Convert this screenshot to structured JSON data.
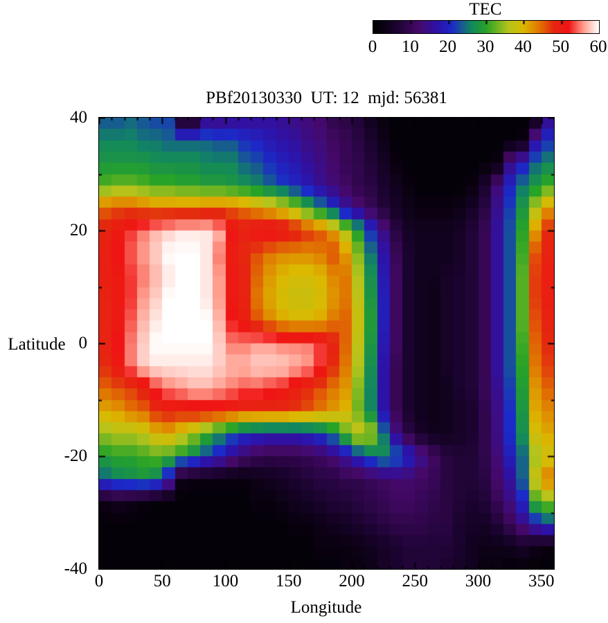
{
  "page": {
    "background": "#ffffff"
  },
  "colorbar": {
    "title": "TEC",
    "min": 0,
    "max": 60,
    "tick_values": [
      0,
      10,
      20,
      30,
      40,
      50,
      60
    ],
    "tick_labels": [
      "0",
      "10",
      "20",
      "30",
      "40",
      "50",
      "60"
    ]
  },
  "palette_stops": [
    [
      0,
      "#000000"
    ],
    [
      6,
      "#1a032e"
    ],
    [
      12,
      "#46096a"
    ],
    [
      17,
      "#2d12a8"
    ],
    [
      21,
      "#1b2ac8"
    ],
    [
      26,
      "#12875f"
    ],
    [
      30,
      "#27a327"
    ],
    [
      36,
      "#b4c41c"
    ],
    [
      40,
      "#dcb800"
    ],
    [
      44,
      "#e07800"
    ],
    [
      48,
      "#e42810"
    ],
    [
      52,
      "#f01414"
    ],
    [
      56,
      "#ff9e8e"
    ],
    [
      60,
      "#ffffff"
    ]
  ],
  "chart_data": {
    "type": "heatmap",
    "title": "PBf20130330  UT: 12  mjd: 56381",
    "xlabel": "Longitude",
    "ylabel": "Latitude",
    "xlim": [
      0,
      360
    ],
    "ylim": [
      -40,
      40
    ],
    "x_ticks": [
      0,
      50,
      100,
      150,
      200,
      250,
      300,
      350
    ],
    "y_ticks": [
      40,
      20,
      0,
      -20,
      -40
    ],
    "x_minor_step": 10,
    "y_minor_step": 10,
    "legend_title": "TEC",
    "grid": false,
    "lon_cell_deg": 10,
    "lat_sample_deg": 4,
    "lon_centers_start": 5,
    "lat_centers": [
      40,
      36,
      32,
      28,
      24,
      20,
      16,
      12,
      8,
      4,
      0,
      -4,
      -8,
      -12,
      -16,
      -20,
      -24,
      -28,
      -32,
      -36,
      -40
    ],
    "values": [
      [
        23,
        23,
        24,
        23,
        22,
        22,
        2,
        2,
        13,
        13,
        14,
        15,
        15,
        16,
        15,
        14,
        13,
        12,
        9,
        8,
        7,
        4,
        2,
        1,
        1,
        1,
        1,
        1,
        1,
        1,
        1,
        1,
        1,
        1,
        2,
        14
      ],
      [
        26,
        26,
        26,
        25,
        25,
        24,
        24,
        24,
        24,
        23,
        23,
        21,
        20,
        18,
        17,
        16,
        14,
        13,
        11,
        10,
        8,
        6,
        3,
        1,
        1,
        1,
        1,
        1,
        1,
        1,
        1,
        1,
        1,
        2,
        16,
        21
      ],
      [
        28,
        28,
        28,
        28,
        27,
        27,
        27,
        27,
        26,
        26,
        26,
        24,
        23,
        21,
        19,
        18,
        16,
        14,
        12,
        10,
        9,
        7,
        5,
        2,
        1,
        1,
        1,
        1,
        1,
        1,
        1,
        2,
        14,
        19,
        24,
        26
      ],
      [
        32,
        33,
        33,
        32,
        31,
        31,
        30,
        30,
        29,
        29,
        28,
        27,
        26,
        24,
        22,
        20,
        18,
        15,
        13,
        11,
        9,
        8,
        6,
        4,
        2,
        1,
        1,
        1,
        1,
        2,
        6,
        13,
        20,
        25,
        28,
        31
      ],
      [
        45,
        46,
        46,
        45,
        44,
        44,
        44,
        44,
        45,
        45,
        45,
        44,
        42,
        40,
        38,
        35,
        30,
        26,
        21,
        16,
        13,
        10,
        7,
        5,
        3,
        2,
        2,
        2,
        3,
        5,
        8,
        15,
        22,
        28,
        36,
        42
      ],
      [
        49,
        51,
        53,
        55,
        57,
        58,
        59,
        59,
        59,
        57,
        52,
        50,
        52,
        53,
        52,
        50,
        48,
        46,
        42,
        36,
        29,
        21,
        14,
        8,
        5,
        4,
        4,
        4,
        5,
        7,
        10,
        16,
        23,
        30,
        42,
        48
      ],
      [
        50,
        52,
        54,
        56,
        58,
        60,
        60,
        60,
        59,
        55,
        50,
        48,
        46,
        44,
        43,
        43,
        43,
        44,
        46,
        42,
        34,
        25,
        17,
        10,
        6,
        4,
        4,
        4,
        5,
        7,
        10,
        16,
        23,
        31,
        46,
        49
      ],
      [
        50,
        51,
        53,
        55,
        57,
        59,
        60,
        60,
        59,
        56,
        51,
        49,
        45,
        42,
        40,
        39,
        39,
        40,
        43,
        44,
        36,
        27,
        18,
        11,
        6,
        4,
        4,
        5,
        6,
        7,
        10,
        16,
        23,
        32,
        47,
        50
      ],
      [
        49,
        51,
        53,
        56,
        58,
        60,
        60,
        60,
        59,
        56,
        51,
        49,
        44,
        41,
        39,
        38,
        38,
        39,
        42,
        44,
        37,
        28,
        19,
        11,
        6,
        4,
        3,
        5,
        6,
        7,
        10,
        16,
        23,
        32,
        47,
        50
      ],
      [
        49,
        51,
        54,
        57,
        59,
        60,
        60,
        60,
        60,
        57,
        52,
        50,
        46,
        43,
        41,
        40,
        40,
        41,
        44,
        45,
        38,
        29,
        19,
        11,
        6,
        4,
        3,
        5,
        6,
        7,
        10,
        16,
        23,
        32,
        46,
        49
      ],
      [
        49,
        52,
        55,
        58,
        60,
        60,
        60,
        60,
        60,
        58,
        55,
        55,
        56,
        56,
        55,
        55,
        55,
        53,
        49,
        45,
        37,
        28,
        18,
        11,
        6,
        4,
        3,
        5,
        6,
        7,
        10,
        16,
        23,
        31,
        45,
        48
      ],
      [
        48,
        51,
        55,
        58,
        59,
        59,
        59,
        59,
        59,
        58,
        57,
        57,
        58,
        58,
        58,
        57,
        56,
        53,
        48,
        44,
        36,
        27,
        17,
        10,
        6,
        4,
        3,
        5,
        6,
        7,
        10,
        16,
        23,
        30,
        44,
        47
      ],
      [
        45,
        46,
        47,
        49,
        53,
        55,
        56,
        57,
        57,
        56,
        55,
        54,
        54,
        53,
        52,
        50,
        48,
        46,
        44,
        42,
        34,
        26,
        17,
        10,
        6,
        4,
        3,
        4,
        6,
        7,
        10,
        15,
        22,
        29,
        42,
        45
      ],
      [
        41,
        42,
        44,
        45,
        48,
        49,
        49,
        50,
        50,
        50,
        49,
        48,
        48,
        48,
        48,
        47,
        46,
        44,
        42,
        40,
        33,
        26,
        17,
        10,
        6,
        4,
        3,
        4,
        5,
        6,
        9,
        14,
        21,
        28,
        41,
        43
      ],
      [
        35,
        36,
        36,
        37,
        40,
        41,
        38,
        35,
        31,
        27,
        24,
        21,
        20,
        19,
        19,
        19,
        20,
        22,
        26,
        32,
        38,
        36,
        25,
        14,
        8,
        5,
        4,
        4,
        5,
        6,
        9,
        14,
        21,
        27,
        39,
        41
      ],
      [
        29,
        30,
        30,
        31,
        32,
        31,
        29,
        26,
        22,
        19,
        15,
        12,
        10,
        9,
        9,
        9,
        10,
        11,
        13,
        16,
        20,
        24,
        27,
        25,
        20,
        15,
        11,
        8,
        7,
        7,
        9,
        13,
        19,
        24,
        35,
        38
      ],
      [
        24,
        26,
        27,
        28,
        26,
        18,
        3,
        2,
        2,
        2,
        2,
        2,
        3,
        4,
        5,
        6,
        7,
        8,
        8,
        9,
        9,
        10,
        11,
        12,
        12,
        11,
        10,
        8,
        7,
        7,
        8,
        12,
        16,
        24,
        38,
        44
      ],
      [
        3,
        4,
        3,
        2,
        1,
        1,
        1,
        1,
        1,
        1,
        1,
        1,
        2,
        2,
        3,
        4,
        5,
        6,
        7,
        7,
        8,
        9,
        10,
        11,
        11,
        10,
        9,
        8,
        7,
        6,
        7,
        10,
        14,
        20,
        31,
        34
      ],
      [
        1,
        1,
        1,
        1,
        1,
        1,
        1,
        1,
        1,
        1,
        1,
        1,
        1,
        1,
        1,
        2,
        2,
        3,
        4,
        5,
        6,
        7,
        8,
        9,
        9,
        9,
        8,
        8,
        6,
        5,
        5,
        7,
        10,
        14,
        19,
        22
      ],
      [
        1,
        1,
        1,
        1,
        1,
        1,
        1,
        1,
        1,
        1,
        1,
        1,
        1,
        1,
        1,
        1,
        1,
        2,
        2,
        2,
        3,
        4,
        5,
        6,
        7,
        7,
        7,
        7,
        6,
        4,
        3,
        3,
        4,
        5,
        3,
        2
      ],
      [
        1,
        1,
        1,
        1,
        1,
        1,
        1,
        1,
        1,
        1,
        1,
        1,
        1,
        1,
        1,
        1,
        1,
        1,
        1,
        2,
        2,
        3,
        5,
        6,
        7,
        7,
        7,
        6,
        5,
        4,
        2,
        2,
        1,
        1,
        1,
        1
      ]
    ]
  }
}
